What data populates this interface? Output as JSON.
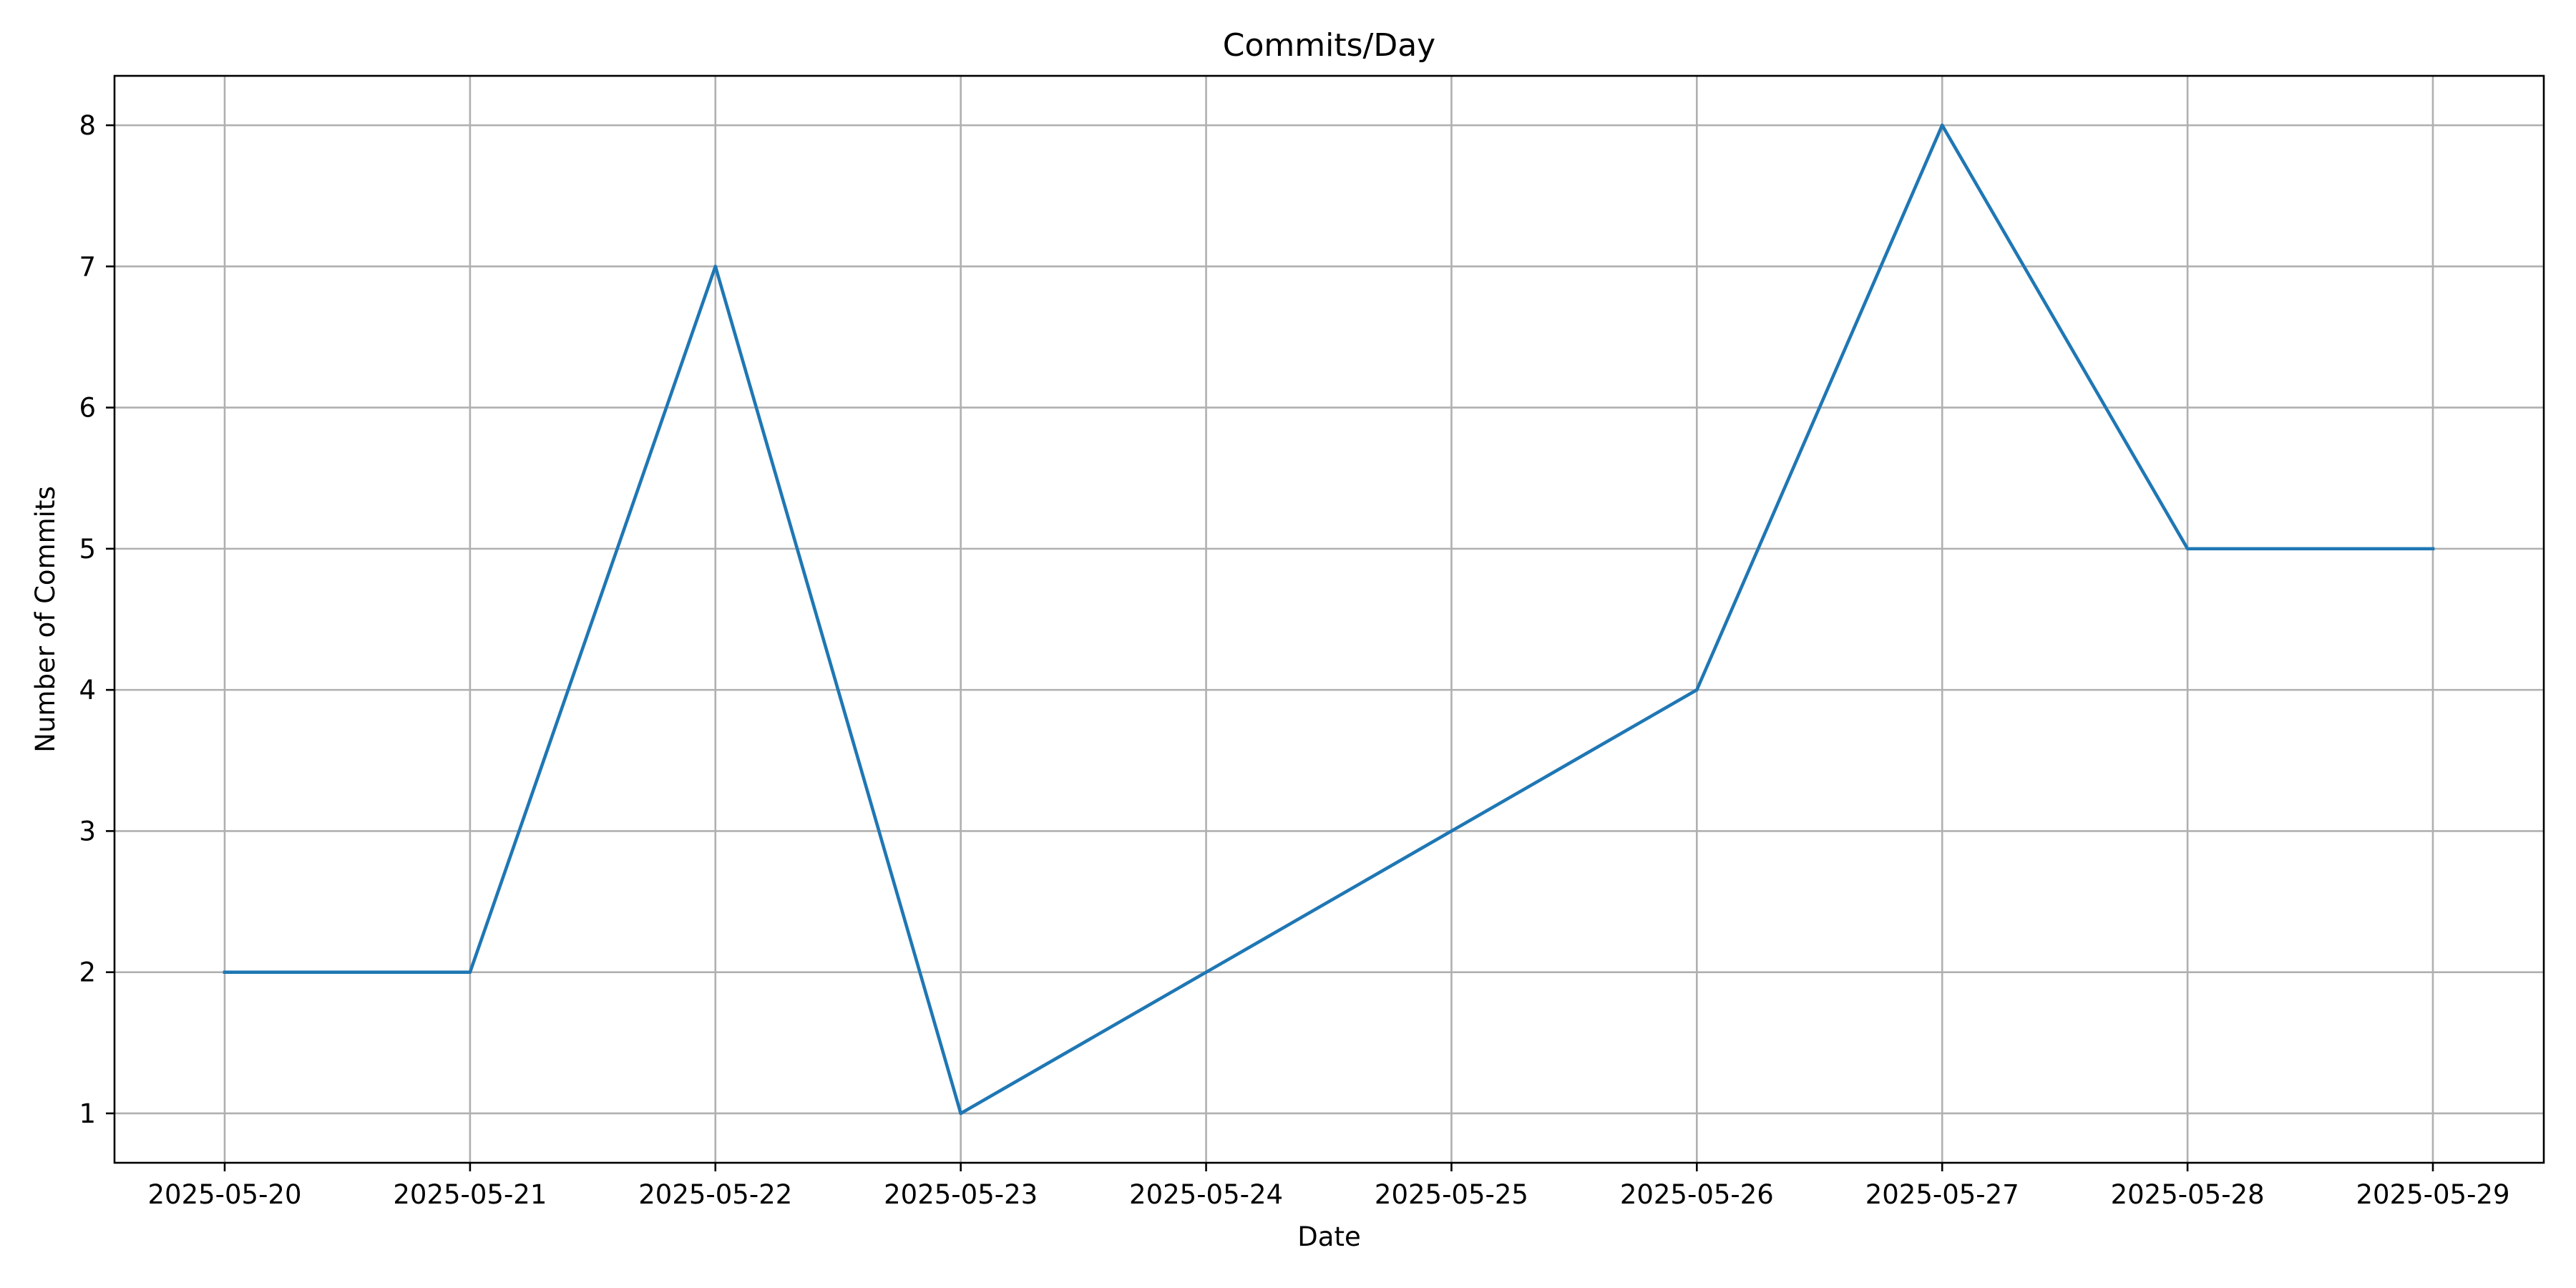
{
  "chart_data": {
    "type": "line",
    "title": "Commits/Day",
    "xlabel": "Date",
    "ylabel": "Number of Commits",
    "x": [
      "2025-05-20",
      "2025-05-21",
      "2025-05-22",
      "2025-05-23",
      "2025-05-24",
      "2025-05-25",
      "2025-05-26",
      "2025-05-27",
      "2025-05-28",
      "2025-05-29"
    ],
    "series": [
      {
        "values": [
          2,
          2,
          7,
          1,
          2,
          3,
          4,
          8,
          5,
          5
        ],
        "color": "#1f77b4"
      }
    ],
    "yticks": [
      1,
      2,
      3,
      4,
      5,
      6,
      7,
      8
    ],
    "ylim": [
      0.65,
      8.35
    ],
    "grid": true,
    "legend": "none"
  }
}
